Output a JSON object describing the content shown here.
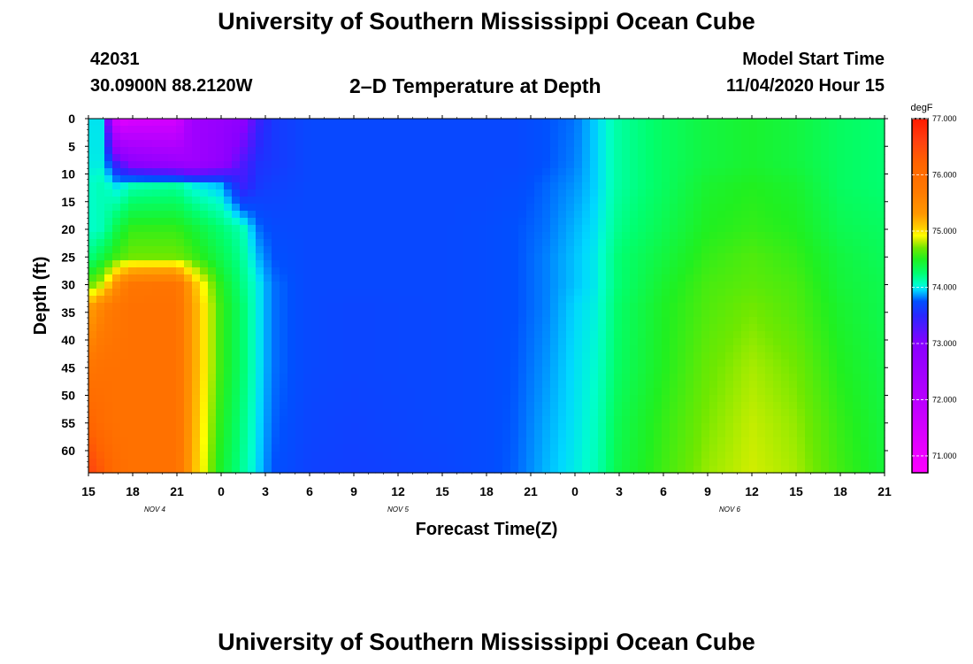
{
  "header": {
    "title_top": "University of Southern Mississippi Ocean Cube",
    "title_bottom": "University of Southern Mississippi Ocean Cube",
    "station_id": "42031",
    "location": "30.0900N 88.2120W",
    "chart_title": "2–D Temperature at Depth",
    "model_start_label": "Model Start Time",
    "model_start_value": "11/04/2020 Hour 15"
  },
  "chart_data": {
    "type": "heatmap",
    "title": "2–D Temperature at Depth",
    "xlabel": "Forecast Time(Z)",
    "ylabel": "Depth (ft)",
    "x_hours": [
      0,
      3,
      6,
      9,
      12,
      15,
      18,
      21,
      24,
      27,
      30,
      33,
      36,
      39,
      42,
      45,
      48,
      51,
      54
    ],
    "x_tick_labels": [
      "15",
      "18",
      "21",
      "0",
      "3",
      "6",
      "9",
      "12",
      "15",
      "18",
      "21",
      "0",
      "3",
      "6",
      "9",
      "12",
      "15",
      "18",
      "21"
    ],
    "date_labels": [
      {
        "text": "NOV  4",
        "hour": 4.5
      },
      {
        "text": "NOV  5",
        "hour": 21
      },
      {
        "text": "NOV  6",
        "hour": 43.5
      }
    ],
    "y_ticks": [
      0,
      5,
      10,
      15,
      20,
      25,
      30,
      35,
      40,
      45,
      50,
      55,
      60
    ],
    "y_range": [
      0,
      64
    ],
    "colorbar": {
      "unit": "degF",
      "min": 70.7,
      "max": 77.0,
      "tick_values": [
        71.0,
        72.0,
        73.0,
        74.0,
        75.0,
        76.0,
        77.0
      ],
      "tick_labels": [
        "71.000",
        "72.000",
        "73.000",
        "74.000",
        "75.000",
        "76.000",
        "77.000"
      ],
      "colors": [
        [
          70.7,
          "#ff00ff"
        ],
        [
          71.5,
          "#d400ff"
        ],
        [
          72.3,
          "#aa00ff"
        ],
        [
          73.0,
          "#8800ff"
        ],
        [
          73.5,
          "#2828ff"
        ],
        [
          73.75,
          "#0050ff"
        ],
        [
          73.95,
          "#00d8ff"
        ],
        [
          74.05,
          "#00ffcc"
        ],
        [
          74.25,
          "#00ff70"
        ],
        [
          74.5,
          "#20f020"
        ],
        [
          74.7,
          "#70e800"
        ],
        [
          74.85,
          "#d8ee00"
        ],
        [
          74.92,
          "#ffff00"
        ],
        [
          75.05,
          "#ffd000"
        ],
        [
          75.3,
          "#ff9800"
        ],
        [
          75.7,
          "#ff7a00"
        ],
        [
          76.2,
          "#ff6400"
        ],
        [
          76.6,
          "#ff4010"
        ],
        [
          77.0,
          "#ff1a00"
        ]
      ]
    },
    "temperature_grid_degF": {
      "depths_ft": [
        0,
        8,
        12,
        20,
        25,
        30,
        34,
        45,
        55,
        64
      ],
      "hours": [
        0,
        1,
        2,
        3,
        6,
        7,
        9,
        10.5,
        11.5,
        12.5,
        15,
        18,
        24,
        27,
        29,
        31,
        33,
        34.5,
        36,
        39,
        42,
        45,
        48,
        51,
        54
      ],
      "values": [
        [
          73.98,
          73.98,
          71.2,
          71.4,
          71.5,
          72.5,
          72.7,
          72.9,
          73.4,
          73.6,
          73.7,
          73.7,
          73.7,
          73.7,
          73.7,
          73.75,
          73.8,
          73.95,
          74.15,
          74.3,
          74.4,
          74.45,
          74.4,
          74.3,
          74.25
        ],
        [
          74.0,
          74.0,
          73.3,
          72.9,
          72.6,
          72.5,
          72.8,
          73.3,
          73.55,
          73.6,
          73.7,
          73.7,
          73.7,
          73.7,
          73.7,
          73.75,
          73.82,
          73.95,
          74.15,
          74.3,
          74.4,
          74.45,
          74.4,
          74.3,
          74.25
        ],
        [
          74.05,
          74.1,
          73.95,
          74.1,
          74.15,
          74.0,
          73.9,
          73.4,
          73.6,
          73.65,
          73.7,
          73.7,
          73.7,
          73.7,
          73.72,
          73.78,
          73.85,
          73.95,
          74.15,
          74.3,
          74.45,
          74.5,
          74.45,
          74.3,
          74.25
        ],
        [
          74.05,
          74.1,
          74.4,
          74.55,
          74.55,
          74.45,
          74.25,
          74.1,
          73.8,
          73.72,
          73.7,
          73.7,
          73.7,
          73.72,
          73.75,
          73.8,
          73.9,
          73.98,
          74.2,
          74.35,
          74.5,
          74.55,
          74.5,
          74.35,
          74.3
        ],
        [
          74.2,
          74.4,
          74.6,
          74.7,
          74.7,
          74.6,
          74.35,
          74.15,
          73.9,
          73.75,
          73.7,
          73.7,
          73.7,
          73.72,
          73.75,
          73.82,
          73.92,
          74.0,
          74.25,
          74.4,
          74.55,
          74.62,
          74.55,
          74.4,
          74.32
        ],
        [
          74.65,
          74.85,
          75.5,
          75.8,
          75.85,
          75.2,
          74.5,
          74.2,
          74.0,
          73.8,
          73.7,
          73.7,
          73.7,
          73.72,
          73.75,
          73.82,
          73.92,
          74.0,
          74.25,
          74.45,
          74.6,
          74.65,
          74.6,
          74.42,
          74.35
        ],
        [
          75.2,
          75.6,
          75.8,
          75.9,
          75.9,
          75.3,
          74.55,
          74.25,
          74.0,
          73.8,
          73.7,
          73.68,
          73.7,
          73.72,
          73.75,
          73.82,
          73.95,
          74.02,
          74.28,
          74.48,
          74.62,
          74.7,
          74.62,
          74.45,
          74.35
        ],
        [
          75.8,
          75.9,
          75.9,
          75.9,
          75.9,
          75.3,
          74.55,
          74.25,
          74.0,
          73.8,
          73.7,
          73.68,
          73.7,
          73.72,
          73.76,
          73.85,
          73.97,
          74.05,
          74.3,
          74.5,
          74.68,
          74.78,
          74.7,
          74.5,
          74.38
        ],
        [
          76.2,
          76.0,
          75.9,
          75.9,
          75.9,
          75.25,
          74.5,
          74.2,
          73.97,
          73.78,
          73.68,
          73.66,
          73.7,
          73.72,
          73.77,
          73.88,
          73.98,
          74.08,
          74.35,
          74.55,
          74.72,
          74.82,
          74.75,
          74.55,
          74.4
        ],
        [
          76.6,
          76.3,
          76.0,
          75.9,
          75.9,
          75.2,
          74.45,
          74.15,
          73.95,
          73.75,
          73.66,
          73.64,
          73.68,
          73.72,
          73.78,
          73.9,
          74.0,
          74.1,
          74.38,
          74.58,
          74.76,
          74.84,
          74.78,
          74.58,
          74.42
        ]
      ]
    }
  }
}
